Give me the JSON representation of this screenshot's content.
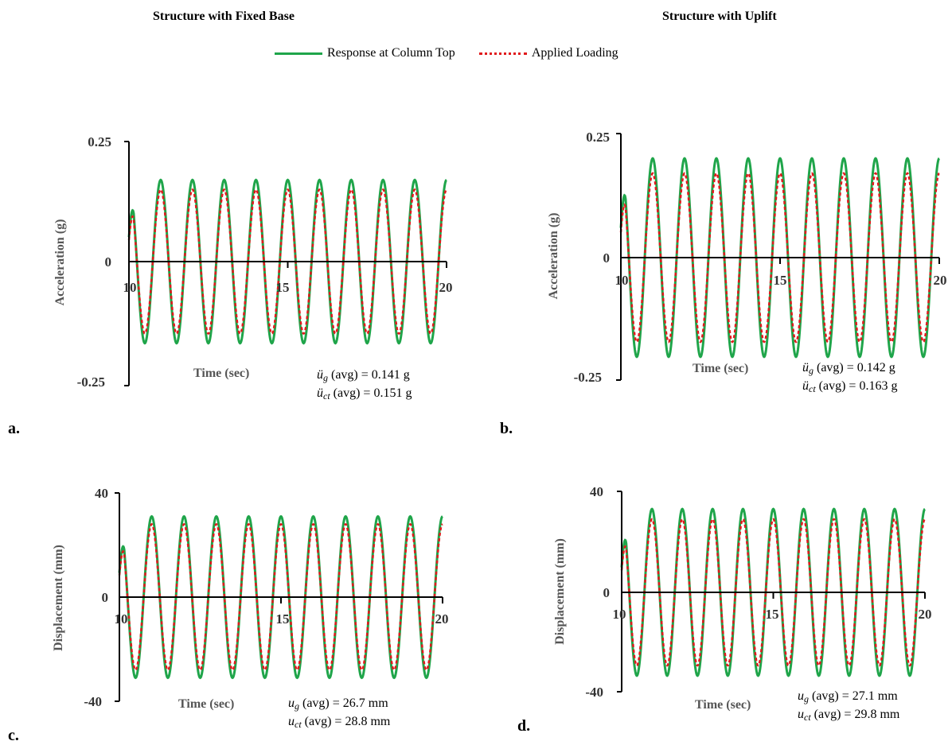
{
  "headers": {
    "left": "Structure with Fixed Base",
    "right": "Structure with Uplift"
  },
  "legend": {
    "response": "Response at Column Top",
    "loading": "Applied Loading"
  },
  "colors": {
    "response": "#1fa54a",
    "loading": "#e0191c",
    "axis": "#000000"
  },
  "panels": [
    {
      "letter": "a.",
      "ylabel": "Acceleration (g)",
      "xlabel": "Time (sec)",
      "yticks": [
        "0.25",
        "0",
        "-0.25"
      ],
      "xticks": [
        "10",
        "15",
        "20"
      ],
      "stat1_sym": "ü",
      "stat1_sub": "g",
      "stat1_rest": " (avg) = 0.141 g",
      "stat2_sym": "ü",
      "stat2_sub": "ct",
      "stat2_rest": " (avg) = 0.151 g"
    },
    {
      "letter": "b.",
      "ylabel": "Acceleration (g)",
      "xlabel": "Time (sec)",
      "yticks": [
        "0.25",
        "0",
        "-0.25"
      ],
      "xticks": [
        "10",
        "15",
        "20"
      ],
      "stat1_sym": "ü",
      "stat1_sub": "g",
      "stat1_rest": " (avg) = 0.142 g",
      "stat2_sym": "ü",
      "stat2_sub": "ct",
      "stat2_rest": " (avg) = 0.163 g"
    },
    {
      "letter": "c.",
      "ylabel": "Displacement (mm)",
      "xlabel": "Time (sec)",
      "yticks": [
        "40",
        "0",
        "-40"
      ],
      "xticks": [
        "10",
        "15",
        "20"
      ],
      "stat1_sym": "u",
      "stat1_sub": "g",
      "stat1_rest": " (avg) = 26.7 mm",
      "stat2_sym": "u",
      "stat2_sub": "ct",
      "stat2_rest": " (avg) = 28.8 mm"
    },
    {
      "letter": "d.",
      "ylabel": "Displacement (mm)",
      "xlabel": "Time (sec)",
      "yticks": [
        "40",
        "0",
        "-40"
      ],
      "xticks": [
        "10",
        "15",
        "20"
      ],
      "stat1_sym": "u",
      "stat1_sub": "g",
      "stat1_rest": " (avg) = 27.1 mm",
      "stat2_sym": "u",
      "stat2_sub": "ct",
      "stat2_rest": " (avg) = 29.8 mm"
    }
  ],
  "chart_data": [
    {
      "type": "line",
      "xlim": [
        10,
        20
      ],
      "ylim": [
        -0.25,
        0.25
      ],
      "grid": false,
      "legend_placement": "top",
      "series": [
        {
          "name": "Response at Column Top",
          "amplitude": 0.17,
          "frequency_hz": 1.0
        },
        {
          "name": "Applied Loading",
          "amplitude": 0.15,
          "frequency_hz": 1.0
        }
      ]
    },
    {
      "type": "line",
      "xlim": [
        10,
        20
      ],
      "ylim": [
        -0.25,
        0.25
      ],
      "grid": false,
      "legend_placement": "top",
      "series": [
        {
          "name": "Response at Column Top",
          "amplitude": 0.2,
          "frequency_hz": 1.0
        },
        {
          "name": "Applied Loading",
          "amplitude": 0.17,
          "frequency_hz": 1.0
        }
      ]
    },
    {
      "type": "line",
      "xlim": [
        10,
        20
      ],
      "ylim": [
        -40,
        40
      ],
      "grid": false,
      "legend_placement": "top",
      "series": [
        {
          "name": "Response at Column Top",
          "amplitude": 31,
          "frequency_hz": 1.0
        },
        {
          "name": "Applied Loading",
          "amplitude": 28,
          "frequency_hz": 1.0
        }
      ]
    },
    {
      "type": "line",
      "xlim": [
        10,
        20
      ],
      "ylim": [
        -40,
        40
      ],
      "grid": false,
      "legend_placement": "top",
      "series": [
        {
          "name": "Response at Column Top",
          "amplitude": 33,
          "frequency_hz": 1.0
        },
        {
          "name": "Applied Loading",
          "amplitude": 29,
          "frequency_hz": 1.0
        }
      ]
    }
  ]
}
